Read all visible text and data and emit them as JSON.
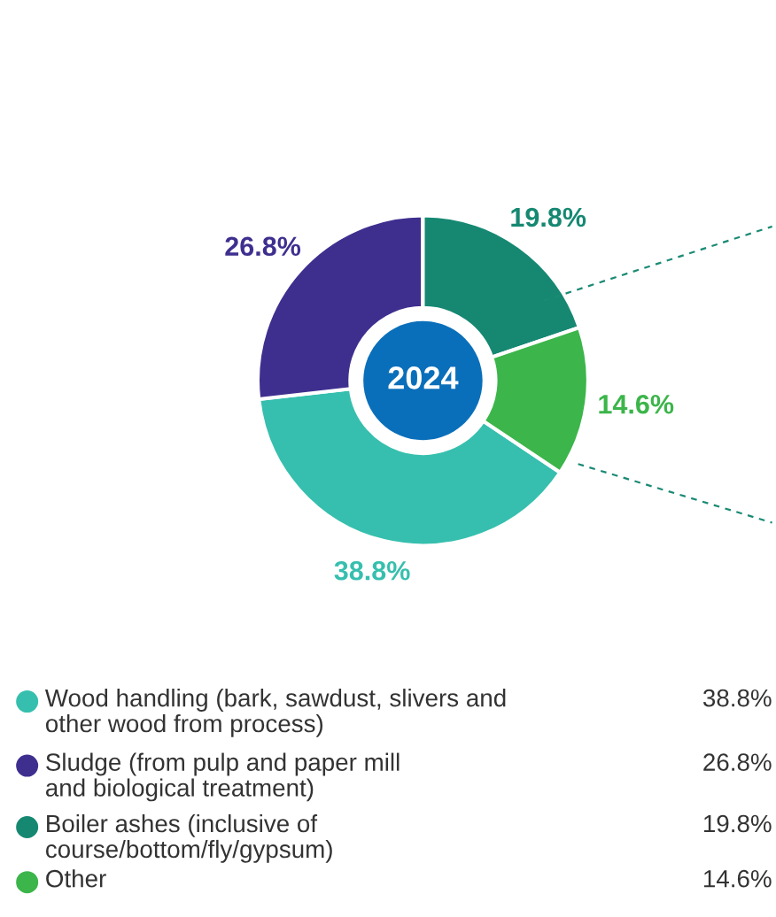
{
  "chart_data": {
    "type": "donut",
    "title": "2024",
    "categories": [
      "Wood handling (bark, sawdust, slivers and\nother wood from process)",
      "Sludge (from pulp and paper mill\nand biological treatment)",
      "Boiler ashes (inclusive of\ncourse/bottom/fly/gypsum)",
      "Other"
    ],
    "values": [
      38.8,
      26.8,
      19.8,
      14.6
    ],
    "colors": [
      "#36bfae",
      "#3e2f8f",
      "#168872",
      "#3cb54a"
    ],
    "value_labels": [
      "38.8%",
      "26.8%",
      "19.8%",
      "14.6%"
    ],
    "legend": "bottom"
  }
}
